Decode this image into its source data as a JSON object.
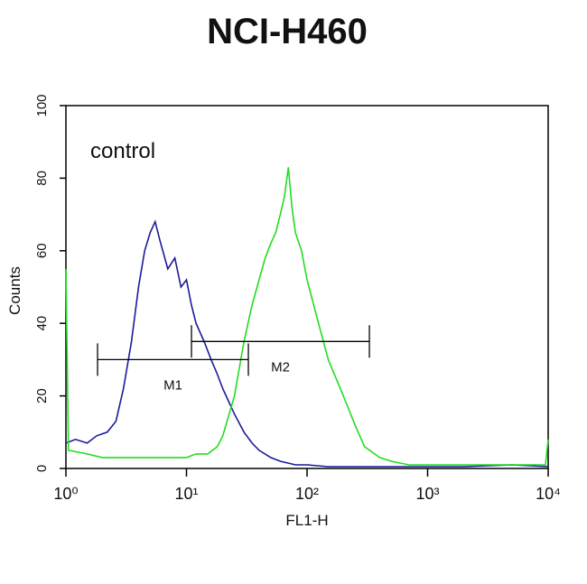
{
  "chart_data": {
    "type": "line",
    "title": "NCI-H460",
    "xlabel": "FL1-H",
    "ylabel": "Counts",
    "annotation": "control",
    "xscale": "log",
    "xlim": [
      1,
      10000
    ],
    "xticks": [
      {
        "value": 1,
        "label": "10⁰"
      },
      {
        "value": 10,
        "label": "10¹"
      },
      {
        "value": 100,
        "label": "10²"
      },
      {
        "value": 1000,
        "label": "10³"
      },
      {
        "value": 10000,
        "label": "10⁴"
      }
    ],
    "ylim": [
      0,
      100
    ],
    "yticks": [
      0,
      20,
      40,
      60,
      80,
      100
    ],
    "series": [
      {
        "color": "#1a1a9a",
        "x": [
          1,
          1.2,
          1.5,
          1.8,
          2.2,
          2.6,
          3,
          3.5,
          4,
          4.5,
          5,
          5.5,
          6,
          7,
          8,
          9,
          10,
          11,
          12,
          14,
          16,
          18,
          20,
          25,
          30,
          35,
          40,
          50,
          60,
          80,
          100,
          150,
          200,
          300,
          500,
          1000,
          2000,
          5000,
          10000
        ],
        "values": [
          7,
          8,
          7,
          9,
          10,
          13,
          22,
          35,
          50,
          60,
          65,
          68,
          63,
          55,
          58,
          50,
          52,
          45,
          40,
          35,
          30,
          26,
          22,
          15,
          10,
          7,
          5,
          3,
          2,
          1,
          1,
          0.5,
          0.5,
          0.5,
          0.5,
          0.5,
          0.5,
          1,
          0.5
        ]
      },
      {
        "color": "#22dd22",
        "x": [
          1,
          1.05,
          1.5,
          2,
          3,
          4,
          5,
          6,
          8,
          10,
          12,
          15,
          18,
          20,
          25,
          30,
          35,
          40,
          45,
          50,
          55,
          60,
          65,
          70,
          75,
          80,
          90,
          100,
          120,
          150,
          200,
          250,
          300,
          400,
          500,
          700,
          1000,
          2000,
          5000,
          9500,
          10000
        ],
        "values": [
          55,
          5,
          4,
          3,
          3,
          3,
          3,
          3,
          3,
          3,
          4,
          4,
          6,
          9,
          20,
          35,
          45,
          52,
          58,
          62,
          65,
          70,
          75,
          83,
          72,
          65,
          60,
          52,
          42,
          30,
          20,
          12,
          6,
          3,
          2,
          1,
          1,
          1,
          1,
          1,
          8
        ]
      }
    ],
    "markers": [
      {
        "label": "M1",
        "range": [
          1.83,
          32.6
        ],
        "y": 30
      },
      {
        "label": "M2",
        "range": [
          11,
          329
        ],
        "y": 35
      }
    ]
  }
}
